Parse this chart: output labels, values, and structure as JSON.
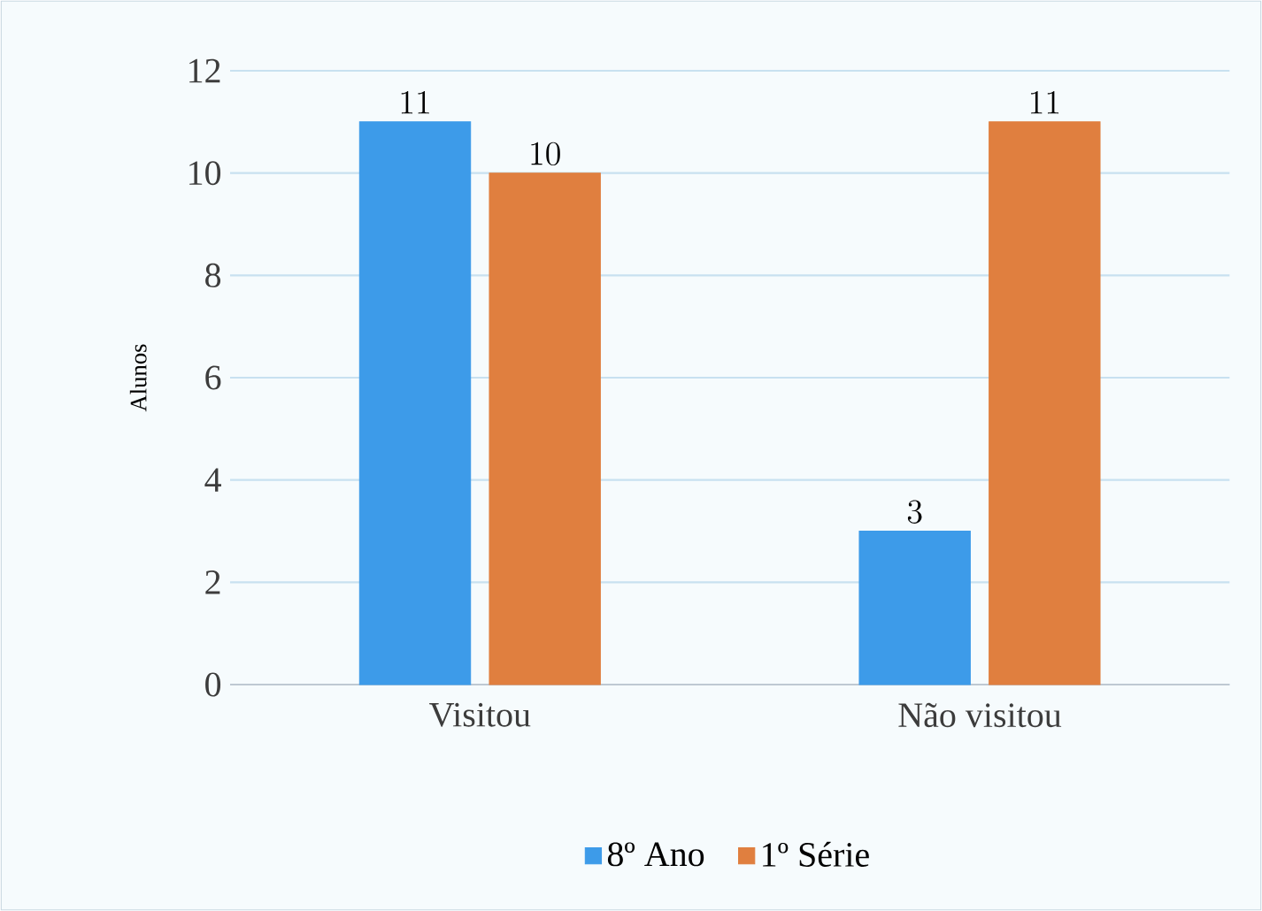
{
  "chart_data": {
    "type": "bar",
    "ylabel": "Alunos",
    "categories": [
      "Visitou",
      "Não visitou"
    ],
    "series": [
      {
        "name": "8º Ano",
        "color": "#3d9be9",
        "values": [
          11,
          3
        ]
      },
      {
        "name": "1º Série",
        "color": "#e07f3f",
        "values": [
          10,
          11
        ]
      }
    ],
    "ylim": [
      0,
      12
    ],
    "yticks": [
      0,
      2,
      4,
      6,
      8,
      10,
      12
    ],
    "grid": "y",
    "legend": "bottom",
    "data_labels": true
  }
}
